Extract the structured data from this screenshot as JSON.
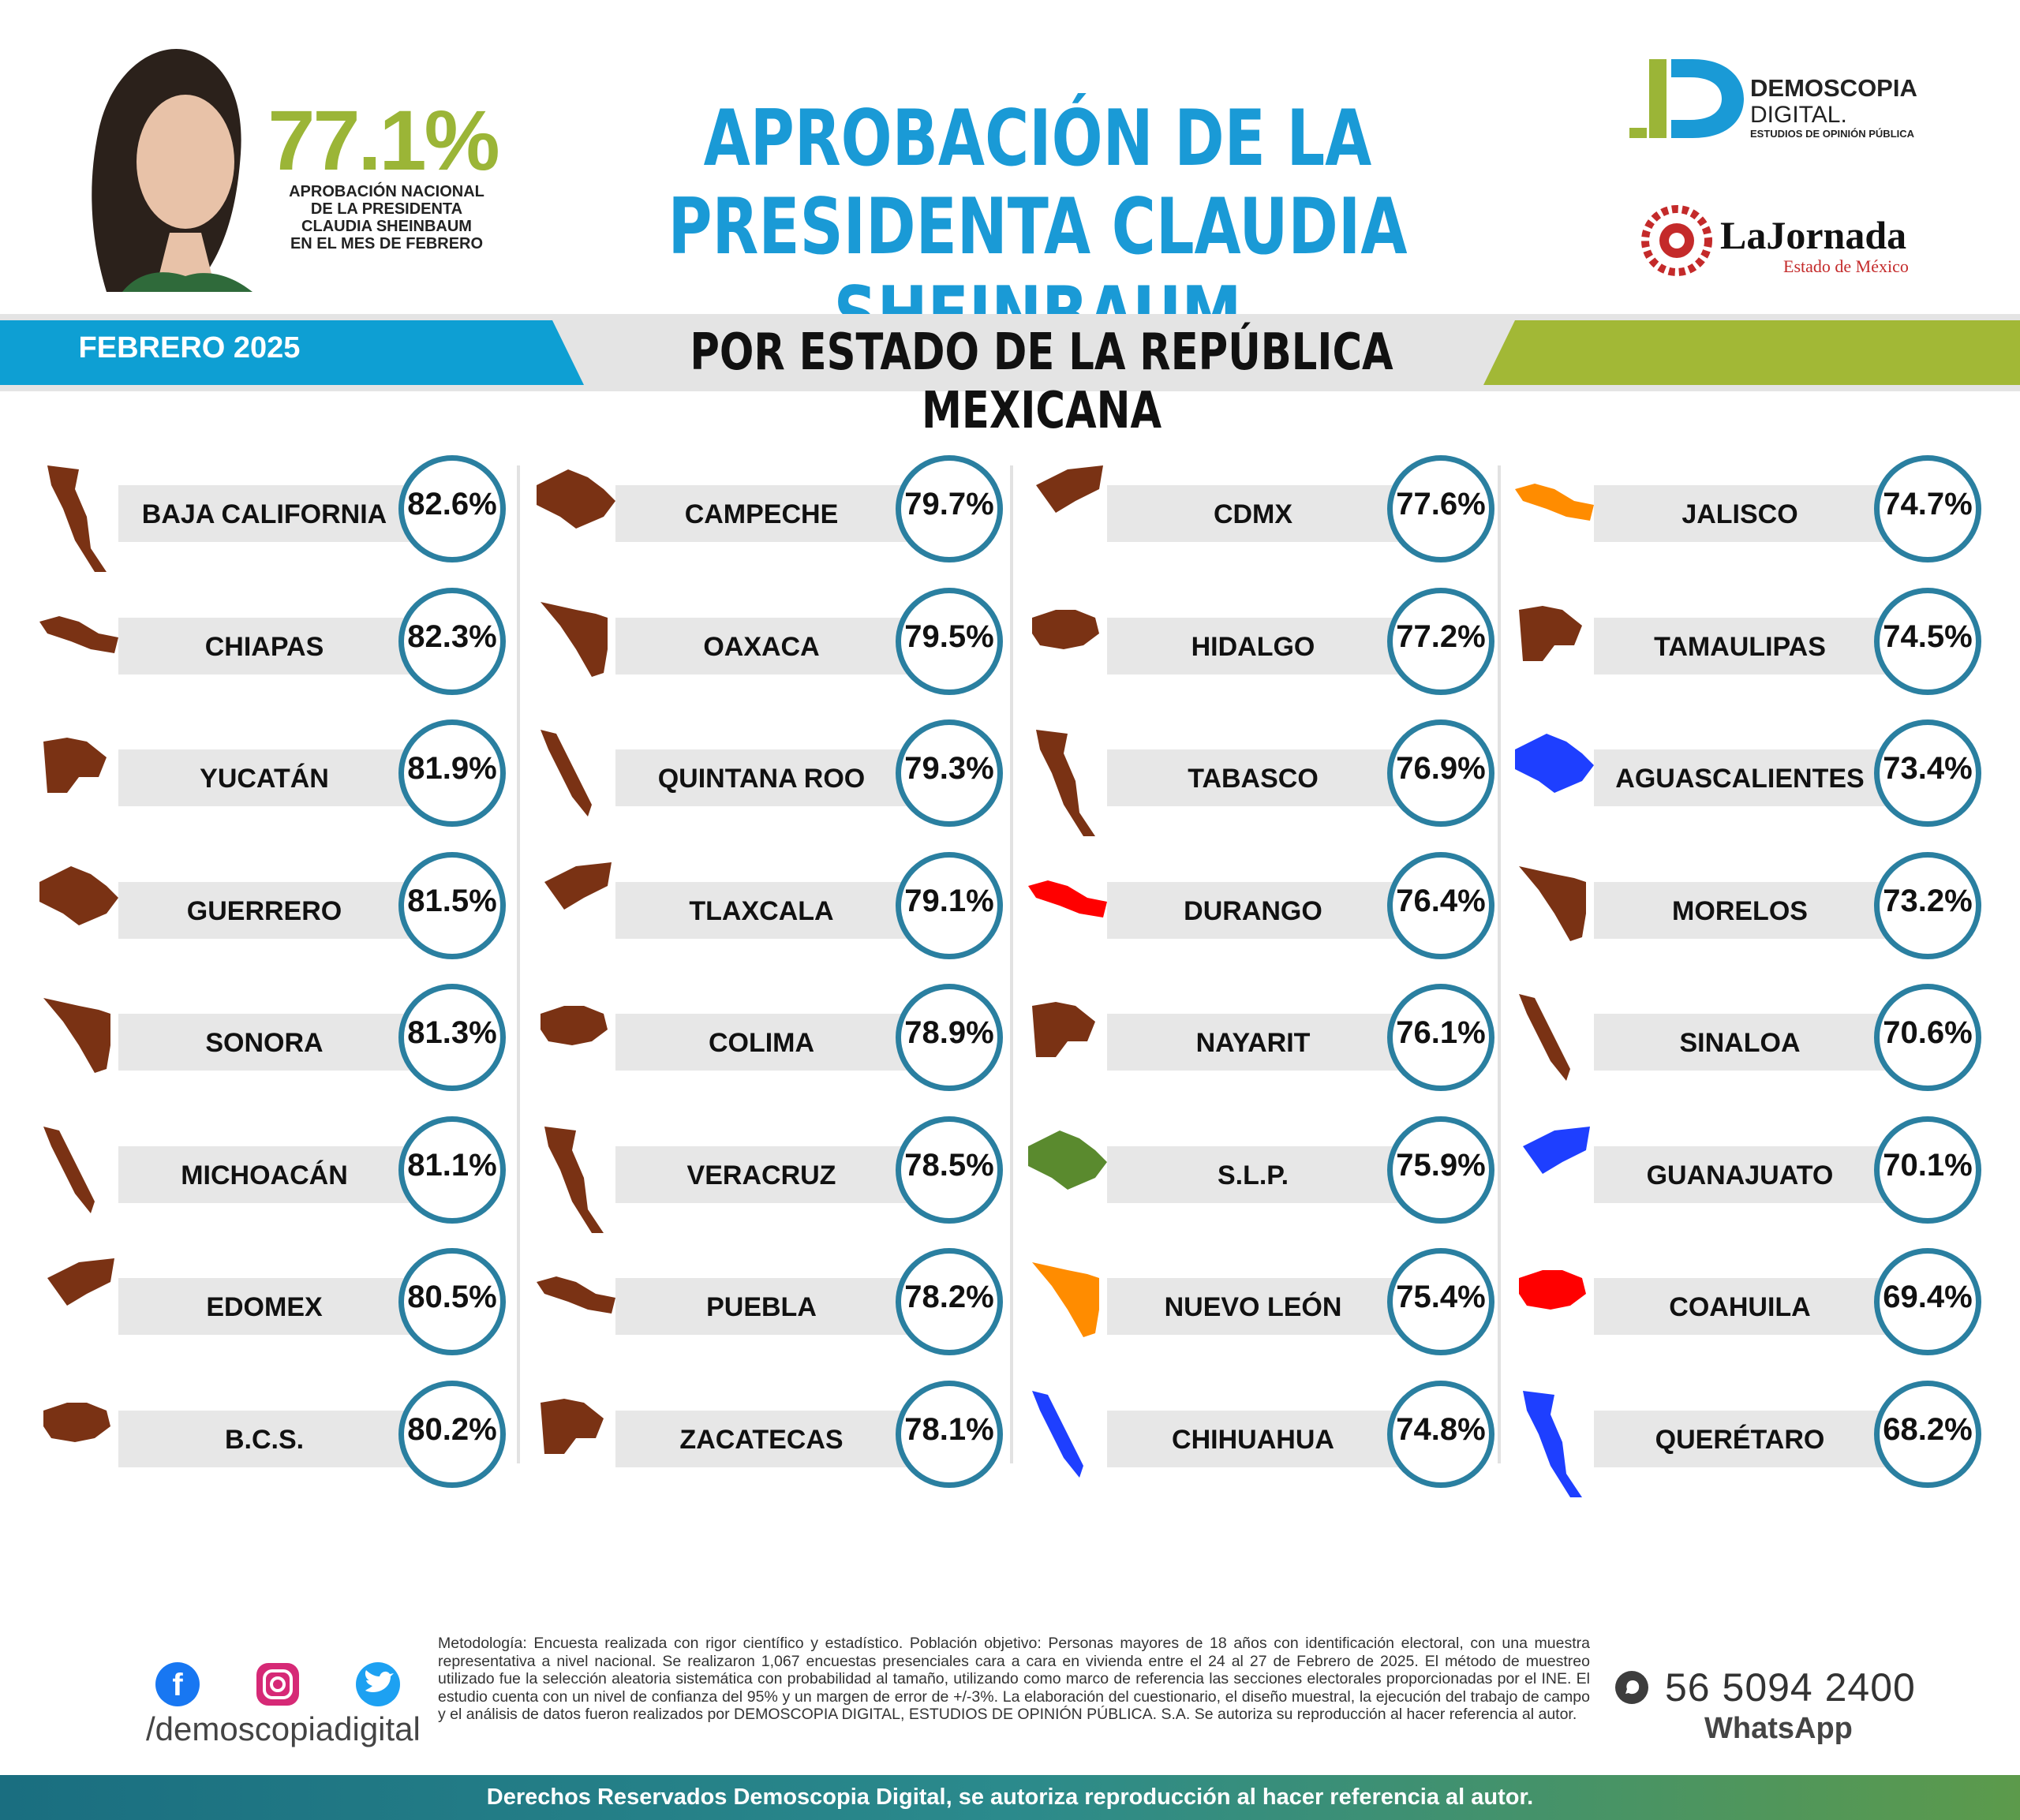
{
  "header": {
    "national_pct": "77.1%",
    "national_desc_lines": [
      "APROBACIÓN NACIONAL",
      "DE LA PRESIDENTA",
      "CLAUDIA SHEINBAUM",
      "EN EL MES DE FEBRERO"
    ],
    "title_line1": "APROBACIÓN DE LA",
    "title_line2": "PRESIDENTA CLAUDIA SHEINBAUM",
    "logo_demoscopia": {
      "name_line1": "DEMOSCOPIA",
      "name_line2": "DIGITAL.",
      "tagline": "ESTUDIOS DE OPINIÓN PÚBLICA"
    },
    "logo_jornada": {
      "name": "LaJornada",
      "sub": "Estado de México"
    }
  },
  "band": {
    "date": "FEBRERO 2025",
    "subtitle": "POR ESTADO DE LA REPÚBLICA MEXICANA"
  },
  "colors": {
    "accent_blue": "#1a9ad6",
    "accent_green": "#9bb537",
    "circle": "#2a7fa0",
    "brown": "#7a3214",
    "orange": "#ff8c00",
    "red": "#ff0000",
    "green": "#5a8a2e",
    "blue": "#1e3fff"
  },
  "chart_data": {
    "type": "table",
    "title": "APROBACIÓN DE LA PRESIDENTA CLAUDIA SHEINBAUM",
    "categories": [
      "BAJA CALIFORNIA",
      "CHIAPAS",
      "YUCATÁN",
      "GUERRERO",
      "SONORA",
      "MICHOACÁN",
      "EDOMEX",
      "B.C.S.",
      "CAMPECHE",
      "OAXACA",
      "QUINTANA ROO",
      "TLAXCALA",
      "COLIMA",
      "VERACRUZ",
      "PUEBLA",
      "ZACATECAS",
      "CDMX",
      "HIDALGO",
      "TABASCO",
      "DURANGO",
      "NAYARIT",
      "S.L.P.",
      "NUEVO LEÓN",
      "CHIHUAHUA",
      "JALISCO",
      "TAMAULIPAS",
      "AGUASCALIENTES",
      "MORELOS",
      "SINALOA",
      "GUANAJUATO",
      "COAHUILA",
      "QUERÉTARO"
    ],
    "values": [
      82.6,
      82.3,
      81.9,
      81.5,
      81.3,
      81.1,
      80.5,
      80.2,
      79.7,
      79.5,
      79.3,
      79.1,
      78.9,
      78.5,
      78.2,
      78.1,
      77.6,
      77.2,
      76.9,
      76.4,
      76.1,
      75.9,
      75.4,
      74.8,
      74.7,
      74.5,
      73.4,
      73.2,
      70.6,
      70.1,
      69.4,
      68.2
    ],
    "labels": [
      "82.6%",
      "82.3%",
      "81.9%",
      "81.5%",
      "81.3%",
      "81.1%",
      "80.5%",
      "80.2%",
      "79.7%",
      "79.5%",
      "79.3%",
      "79.1%",
      "78.9%",
      "78.5%",
      "78.2%",
      "78.1%",
      "77.6%",
      "77.2%",
      "76.9%",
      "76.4%",
      "76.1%",
      "75.9%",
      "75.4%",
      "74.8%",
      "74.7%",
      "74.5%",
      "73.4%",
      "73.2%",
      "70.6%",
      "70.1%",
      "69.4%",
      "68.2%"
    ],
    "map_colors": [
      "brown",
      "brown",
      "brown",
      "brown",
      "brown",
      "brown",
      "brown",
      "brown",
      "brown",
      "brown",
      "brown",
      "brown",
      "brown",
      "brown",
      "brown",
      "brown",
      "brown",
      "brown",
      "brown",
      "red",
      "brown",
      "green",
      "orange",
      "blue",
      "orange",
      "brown",
      "blue",
      "brown",
      "brown",
      "blue",
      "red",
      "blue"
    ]
  },
  "footer": {
    "handle": "/demoscopiadigital",
    "methodology": "Metodología: Encuesta realizada con rigor científico y estadístico. Población objetivo: Personas mayores de 18 años con identificación electoral, con una muestra representativa a nivel nacional. Se realizaron 1,067 encuestas presenciales cara a cara en vivienda entre el 24 al 27 de Febrero de 2025. El método de muestreo utilizado fue la selección aleatoria sistemática con probabilidad al tamaño, utilizando como marco de referencia las secciones electorales proporcionadas por el INE. El estudio cuenta con un nivel de confianza del 95% y un margen de error de +/-3%. La elaboración del cuestionario, el diseño muestral, la ejecución del trabajo de campo y el análisis de datos fueron realizados por DEMOSCOPIA DIGITAL, ESTUDIOS DE OPINIÓN PÚBLICA. S.A. Se autoriza su reproducción al hacer referencia al autor.",
    "phone": "56 5094 2400",
    "phone_label": "WhatsApp",
    "rights": "Derechos Reservados Demoscopia Digital, se autoriza reproducción al hacer referencia al autor."
  }
}
